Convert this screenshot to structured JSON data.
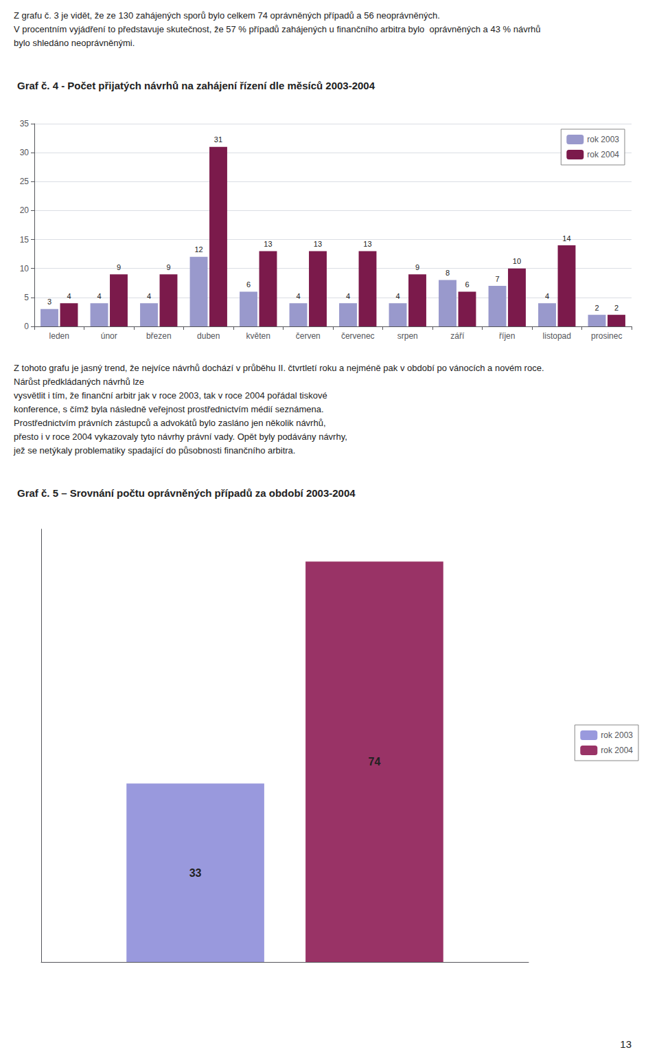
{
  "chart_data": [
    {
      "type": "bar",
      "title": "Graf č. 4 - Počet přijatých návrhů na zahájení řízení dle měsíců 2003-2004",
      "annotations": [
        "Z grafu č. 3 je vidět, že ze 130 zahájených sporů bylo celkem 74 oprávněných případů a 56 neoprávněných.",
        "V procentním vyjádření to představuje skutečnost, že 57 % případů zahájených u finančního arbitra bylo  oprávněných a 43 % návrhů bylo shledáno neoprávněnými."
      ],
      "categories": [
        "leden",
        "únor",
        "březen",
        "duben",
        "květen",
        "červen",
        "červenec",
        "srpen",
        "září",
        "říjen",
        "listopad",
        "prosinec"
      ],
      "series": [
        {
          "name": "rok 2003",
          "color": "#9999CC",
          "values": [
            3,
            4,
            4,
            12,
            6,
            4,
            4,
            4,
            8,
            7,
            4,
            2
          ]
        },
        {
          "name": "rok 2004",
          "color": "#7B1A4B",
          "values": [
            4,
            9,
            9,
            31,
            13,
            13,
            13,
            9,
            6,
            10,
            14,
            2
          ]
        }
      ],
      "ylim": [
        0,
        35
      ],
      "yticks": [
        0,
        5,
        10,
        15,
        20,
        25,
        30,
        35
      ],
      "grid": true,
      "legend": "upper right",
      "data_labels": true
    },
    {
      "type": "bar",
      "title": "Graf č. 5 – Srovnání počtu oprávněných případů za období 2003-2004",
      "annotations": [
        "Z tohoto grafu je jasný trend, že nejvíce návrhů dochází v průběhu II. čtvrtletí roku a nejméně pak v období po vánocích a novém roce. Nárůst předkládaných návrhů lze",
        "vysvětlit i tím, že finanční arbitr jak v roce 2003, tak v roce 2004 pořádal tiskové",
        "konference, s čímž byla následně veřejnost prostřednictvím médií seznámena.",
        "Prostřednictvím právních zástupců a advokátů bylo zasláno jen několik návrhů,",
        "přesto i v roce 2004 vykazovaly tyto návrhy právní vady. Opět byly podávány návrhy,",
        "jež se netýkaly problematiky spadající do působnosti finančního arbitra.",
        "13"
      ],
      "categories": [
        null
      ],
      "series": [
        {
          "name": "rok 2003",
          "color": "#9999DD",
          "values": [
            33
          ]
        },
        {
          "name": "rok 2004",
          "color": "#993366",
          "values": [
            74
          ]
        }
      ],
      "ylim": [
        0,
        80
      ],
      "grid": false,
      "tick_labels": false,
      "legend": "right",
      "data_labels": true
    }
  ]
}
